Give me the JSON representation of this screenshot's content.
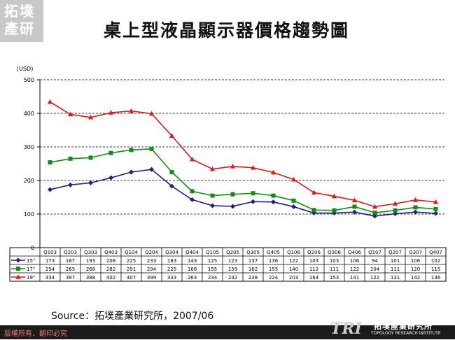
{
  "logo": {
    "text": "拓墣產研"
  },
  "title": "桌上型液晶顯示器價格趨勢圖",
  "source_note": "Source：拓墣產業研究所，2007/06",
  "footer": {
    "copyright": "版權所有．翻印必究"
  },
  "brand": {
    "mark": "TRI",
    "name_cn": "拓墣產業研究所",
    "name_en": "TOPOLOGY RESEARCH INSTITUTE"
  },
  "chart_data": {
    "type": "line",
    "title": "桌上型液晶顯示器價格趨勢圖",
    "ylabel": "(USD)",
    "xlabel": "",
    "ylim": [
      0,
      500
    ],
    "yticks": [
      0,
      100,
      200,
      300,
      400,
      500
    ],
    "grid": "horizontal dashed",
    "categories": [
      "Q103",
      "Q203",
      "Q303",
      "Q403",
      "Q104",
      "Q204",
      "Q304",
      "Q404",
      "Q105",
      "Q205",
      "Q305",
      "Q405",
      "Q106",
      "Q206",
      "Q306",
      "Q406",
      "Q107",
      "Q207",
      "Q307",
      "Q407"
    ],
    "series": [
      {
        "name": "15\"",
        "color": "#1c1c8c",
        "marker": "diamond",
        "values": [
          173,
          187,
          193,
          208,
          225,
          233,
          183,
          143,
          125,
          123,
          137,
          136,
          122,
          103,
          103,
          106,
          94,
          101,
          106,
          102
        ]
      },
      {
        "name": "17\"",
        "color": "#0f8f0f",
        "marker": "square",
        "values": [
          254,
          265,
          268,
          282,
          291,
          294,
          225,
          168,
          155,
          159,
          162,
          155,
          140,
          112,
          111,
          122,
          104,
          111,
          120,
          115
        ]
      },
      {
        "name": "19\"",
        "color": "#e01818",
        "marker": "triangle",
        "values": [
          434,
          397,
          388,
          402,
          407,
          399,
          333,
          263,
          234,
          242,
          238,
          224,
          203,
          164,
          153,
          141,
          122,
          131,
          142,
          136
        ]
      }
    ]
  }
}
